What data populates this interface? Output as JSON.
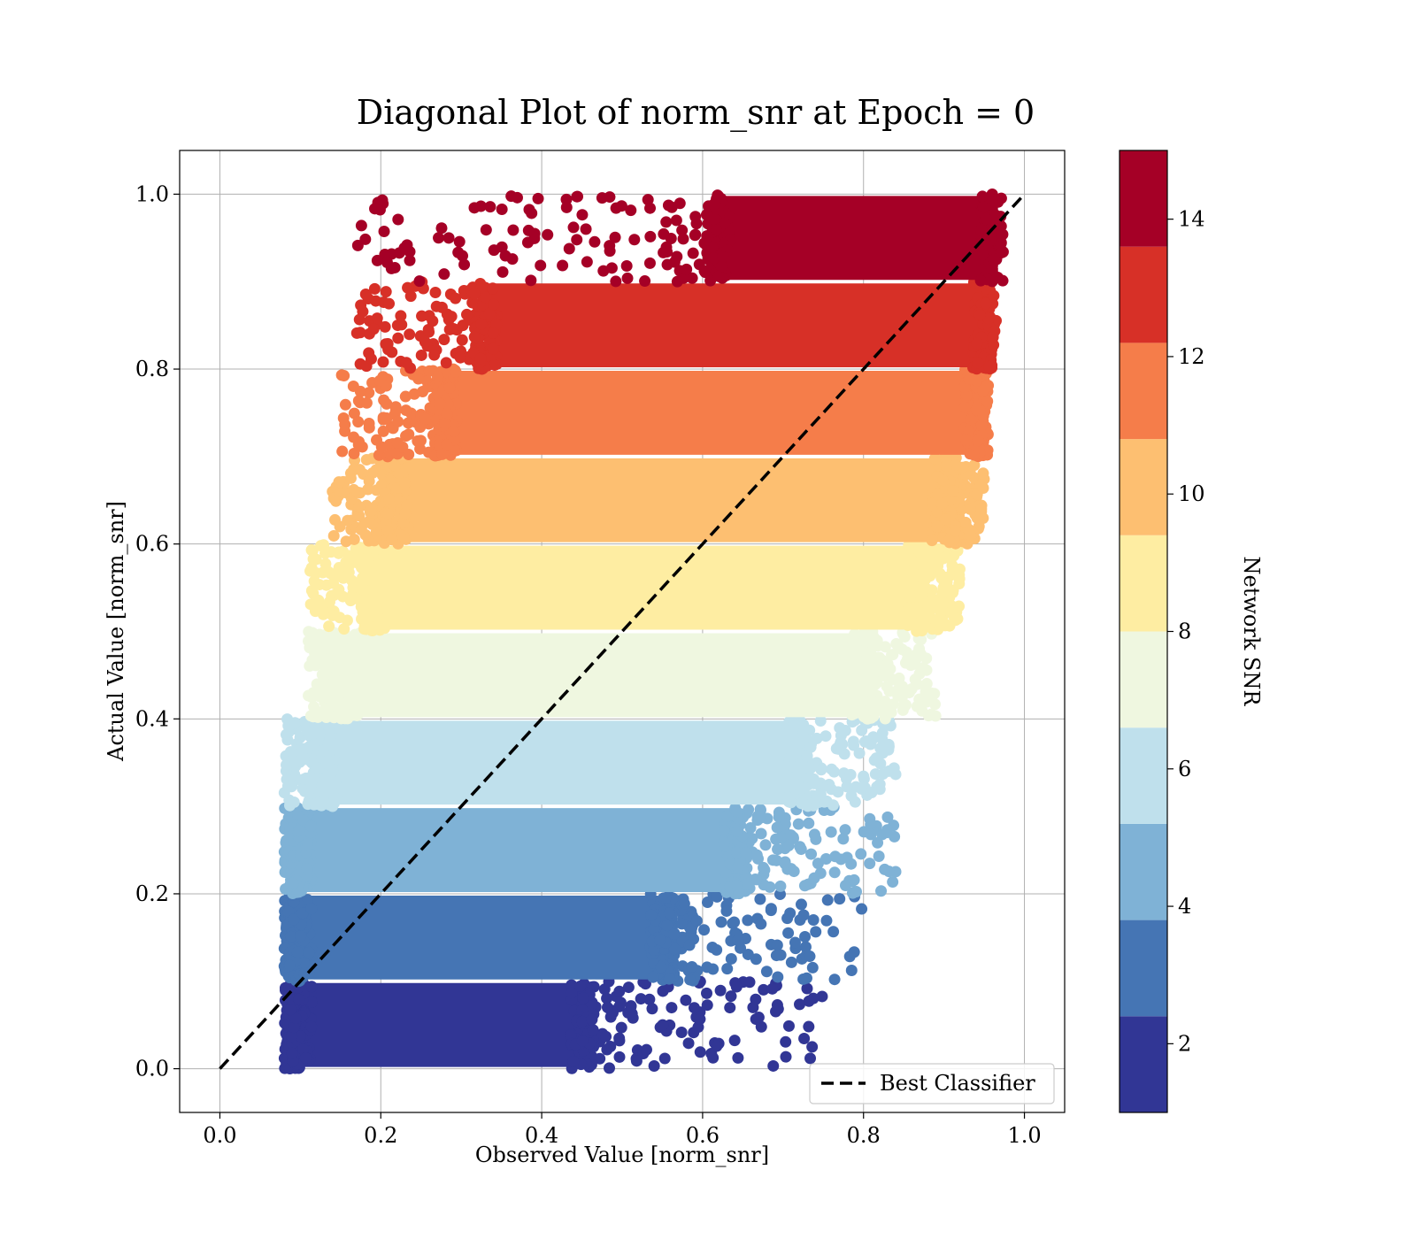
{
  "chart_data": {
    "type": "scatter",
    "title": "Diagonal Plot of norm_snr at Epoch = 0",
    "xlabel": "Observed Value [norm_snr]",
    "ylabel": "Actual Value [norm_snr]",
    "xlim": [
      -0.05,
      1.05
    ],
    "ylim": [
      -0.05,
      1.05
    ],
    "xticks": [
      "0.0",
      "0.2",
      "0.4",
      "0.6",
      "0.8",
      "1.0"
    ],
    "yticks": [
      "0.0",
      "0.2",
      "0.4",
      "0.6",
      "0.8",
      "1.0"
    ],
    "grid": true,
    "legend": {
      "position": "bottom-right",
      "entries": [
        "Best Classifier"
      ]
    },
    "reference_line": {
      "name": "Best Classifier",
      "style": "dashed",
      "color": "#000000",
      "x": [
        0,
        1
      ],
      "y": [
        0,
        1
      ]
    },
    "colorbar": {
      "label": "Network SNR",
      "range": [
        1,
        15
      ],
      "ticks": [
        "2",
        "4",
        "6",
        "8",
        "10",
        "12",
        "14"
      ],
      "bands": [
        {
          "y_min": 0.0,
          "y_max": 0.1,
          "x_core": [
            0.1,
            0.45
          ],
          "x_tail": [
            0.08,
            0.75
          ],
          "color": "#313695"
        },
        {
          "y_min": 0.1,
          "y_max": 0.2,
          "x_core": [
            0.1,
            0.55
          ],
          "x_tail": [
            0.08,
            0.8
          ],
          "color": "#4575b4"
        },
        {
          "y_min": 0.2,
          "y_max": 0.3,
          "x_core": [
            0.1,
            0.64
          ],
          "x_tail": [
            0.08,
            0.84
          ],
          "color": "#7fb2d6"
        },
        {
          "y_min": 0.3,
          "y_max": 0.4,
          "x_core": [
            0.13,
            0.72
          ],
          "x_tail": [
            0.08,
            0.84
          ],
          "color": "#bfe0ec"
        },
        {
          "y_min": 0.4,
          "y_max": 0.5,
          "x_core": [
            0.16,
            0.8
          ],
          "x_tail": [
            0.11,
            0.89
          ],
          "color": "#eff7e0"
        },
        {
          "y_min": 0.5,
          "y_max": 0.6,
          "x_core": [
            0.19,
            0.87
          ],
          "x_tail": [
            0.11,
            0.92
          ],
          "color": "#feeda2"
        },
        {
          "y_min": 0.6,
          "y_max": 0.7,
          "x_core": [
            0.22,
            0.9
          ],
          "x_tail": [
            0.14,
            0.95
          ],
          "color": "#fdbf71"
        },
        {
          "y_min": 0.7,
          "y_max": 0.8,
          "x_core": [
            0.28,
            0.94
          ],
          "x_tail": [
            0.15,
            0.95
          ],
          "color": "#f57d4a"
        },
        {
          "y_min": 0.8,
          "y_max": 0.9,
          "x_core": [
            0.33,
            0.95
          ],
          "x_tail": [
            0.17,
            0.96
          ],
          "color": "#d73027"
        },
        {
          "y_min": 0.9,
          "y_max": 1.0,
          "x_core": [
            0.62,
            0.96
          ],
          "x_tail": [
            0.17,
            0.96
          ],
          "color": "#a50026"
        }
      ]
    }
  }
}
